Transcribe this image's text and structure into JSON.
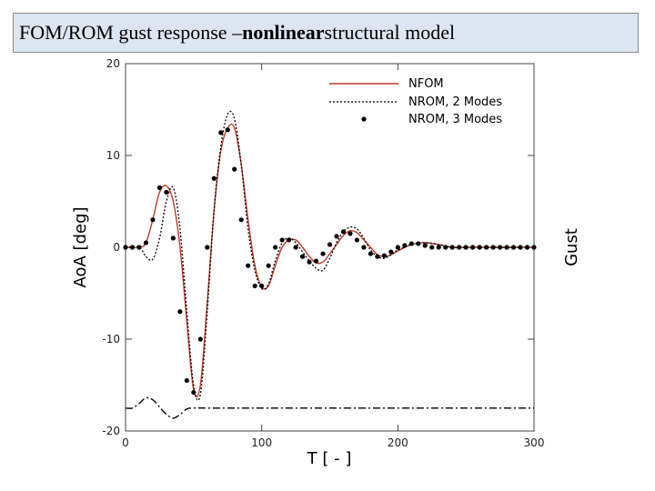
{
  "slide": {
    "title_prefix": "FOM/ROM gust response – ",
    "title_bold": "nonlinear",
    "title_suffix": " structural model"
  },
  "chart_data": {
    "type": "line",
    "title": "",
    "xlabel": "T [ - ]",
    "ylabel": "AoA [deg]",
    "y2label": "Gust",
    "xlim": [
      0,
      300
    ],
    "ylim": [
      -20,
      20
    ],
    "xticks": [
      "0",
      "100",
      "200",
      "300"
    ],
    "yticks": [
      "-20",
      "-10",
      "0",
      "10",
      "20"
    ],
    "grid": false,
    "legend_position": "top-right",
    "colors": {
      "nfom": "#c0392b",
      "nrom2": "#000000",
      "nrom3": "#000000",
      "gust": "#000000"
    },
    "series": [
      {
        "name": "NFOM",
        "style": "solid-red",
        "x": [
          0,
          10,
          15,
          20,
          25,
          30,
          35,
          40,
          45,
          50,
          55,
          60,
          65,
          70,
          75,
          80,
          85,
          90,
          95,
          100,
          105,
          110,
          115,
          120,
          125,
          130,
          135,
          140,
          145,
          150,
          155,
          160,
          165,
          170,
          175,
          180,
          185,
          190,
          195,
          200,
          210,
          220,
          230,
          240,
          250,
          260,
          270,
          280,
          290,
          300
        ],
        "y": [
          0,
          0,
          0.5,
          3,
          6,
          6.7,
          5,
          0,
          -8,
          -15.5,
          -15,
          -6,
          4,
          10.5,
          13,
          13,
          9,
          3,
          -2,
          -4.3,
          -4.2,
          -2,
          0,
          0.8,
          0.8,
          0,
          -1,
          -1.7,
          -1.6,
          -0.7,
          0.3,
          1.3,
          1.8,
          1.6,
          0.8,
          0,
          -0.8,
          -1,
          -0.8,
          -0.4,
          0.3,
          0.5,
          0.3,
          0,
          0,
          0,
          0,
          0,
          0,
          0
        ]
      },
      {
        "name": "NROM, 2 Modes",
        "style": "dotted-black",
        "x": [
          0,
          10,
          15,
          20,
          25,
          30,
          35,
          40,
          45,
          50,
          55,
          60,
          65,
          70,
          75,
          80,
          85,
          90,
          95,
          100,
          105,
          110,
          115,
          120,
          125,
          130,
          135,
          140,
          145,
          150,
          155,
          160,
          165,
          170,
          175,
          180,
          185,
          190,
          195,
          200,
          210,
          220,
          230,
          240,
          250,
          260,
          270,
          280,
          290,
          300
        ],
        "y": [
          0,
          0,
          -1,
          -1.3,
          1,
          5,
          6.5,
          2,
          -7,
          -15,
          -16,
          -7,
          4,
          11,
          14.5,
          14,
          9,
          2,
          -2.5,
          -4.5,
          -4,
          -1.5,
          0.5,
          1,
          0.5,
          -0.5,
          -1.5,
          -2.3,
          -2.5,
          -1.2,
          0.5,
          1.7,
          2.2,
          2.0,
          1.0,
          -0.3,
          -1,
          -1.2,
          -0.8,
          -0.3,
          0.3,
          0.5,
          0.3,
          0,
          0,
          0,
          0,
          0,
          0,
          0
        ]
      },
      {
        "name": "NROM, 3 Modes",
        "style": "markers-black",
        "x": [
          0,
          5,
          10,
          15,
          20,
          25,
          30,
          35,
          40,
          45,
          50,
          55,
          60,
          65,
          70,
          75,
          80,
          85,
          90,
          95,
          100,
          105,
          110,
          115,
          120,
          125,
          130,
          135,
          140,
          145,
          150,
          155,
          160,
          165,
          170,
          175,
          180,
          185,
          190,
          195,
          200,
          205,
          210,
          215,
          220,
          225,
          230,
          235,
          240,
          245,
          250,
          255,
          260,
          265,
          270,
          275,
          280,
          285,
          290,
          295,
          300
        ],
        "y": [
          0,
          0,
          0,
          0.5,
          3,
          6.5,
          6,
          1,
          -7,
          -14.5,
          -15.8,
          -10,
          0,
          7.5,
          12.5,
          12.8,
          8.5,
          3,
          -2,
          -4.2,
          -4.2,
          -2,
          0,
          0.8,
          0.8,
          0,
          -1,
          -1.6,
          -1.5,
          -0.7,
          0.3,
          1.2,
          1.7,
          1.5,
          0.8,
          0,
          -0.7,
          -1,
          -0.9,
          -0.5,
          0,
          0.2,
          0.4,
          0.4,
          0.2,
          0,
          0,
          0,
          0,
          0,
          0,
          0,
          0,
          0,
          0,
          0,
          0,
          0,
          0,
          0,
          0
        ]
      },
      {
        "name": "",
        "style": "dashdot-black",
        "x": [
          0,
          5,
          10,
          15,
          20,
          25,
          30,
          35,
          40,
          45,
          50,
          60,
          80,
          100,
          150,
          200,
          250,
          300
        ],
        "y": [
          -17.5,
          -17.5,
          -17,
          -16.4,
          -16.6,
          -17.4,
          -18.2,
          -18.6,
          -18.2,
          -17.6,
          -17.5,
          -17.5,
          -17.5,
          -17.5,
          -17.5,
          -17.5,
          -17.5,
          -17.5
        ]
      }
    ]
  }
}
